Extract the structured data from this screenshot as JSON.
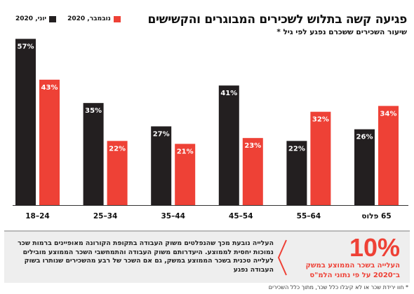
{
  "title": "פגיעה קשה בתלוש לשכירים המבוגרים והקשישים",
  "subtitle": "שיעור השכירים ששכרם נפגע לפי גיל *",
  "colors": {
    "june": "#231f20",
    "november": "#ee4136",
    "axis": "#333333"
  },
  "legend": [
    {
      "label": "יוני, 2020",
      "color": "#231f20"
    },
    {
      "label": "נובמבר, 2020",
      "color": "#ee4136"
    }
  ],
  "chart_data": {
    "type": "bar",
    "title": "פגיעה קשה בתלוש לשכירים המבוגרים והקשישים",
    "subtitle": "שיעור השכירים ששכרם נפגע לפי גיל *",
    "categories": [
      "24–18",
      "34–25",
      "44–35",
      "54–45",
      "64–55",
      "65 פלוס"
    ],
    "series": [
      {
        "name": "יוני, 2020",
        "values": [
          57,
          35,
          27,
          41,
          22,
          26
        ],
        "labels": [
          "57%",
          "35%",
          "27%",
          "41%",
          "22%",
          "26%"
        ]
      },
      {
        "name": "נובמבר, 2020",
        "values": [
          43,
          22,
          21,
          23,
          32,
          34
        ],
        "labels": [
          "43%",
          "22%",
          "21%",
          "23%",
          "32%",
          "34%"
        ]
      }
    ],
    "ylim": [
      0,
      60
    ],
    "grid": false,
    "legend_position": "top-left"
  },
  "highlight": {
    "value": "10%",
    "label": "העלייה בשכר הממוצע במשק",
    "source": "ב־2020 על פי נתוני הלמ\"ס",
    "text": "העלייה נובעת מכך שהנפלטים משוק העבודה בתקופת הקורונה מאופיינים ברמות שכר נמוכות יחסית לממוצע. היעדרותם משוק העבודה והתמחשבי השכר הממוצע מובילים לעלייה טכנית בשכר הממוצע במשק, גם אם השכר של רבע מהשכירים שנותרו בשוק העבודה נפגע"
  },
  "footnote": "* חוו ירידת שכר או לא קיבלו כלל שכר, מתוך כלל השכירים"
}
